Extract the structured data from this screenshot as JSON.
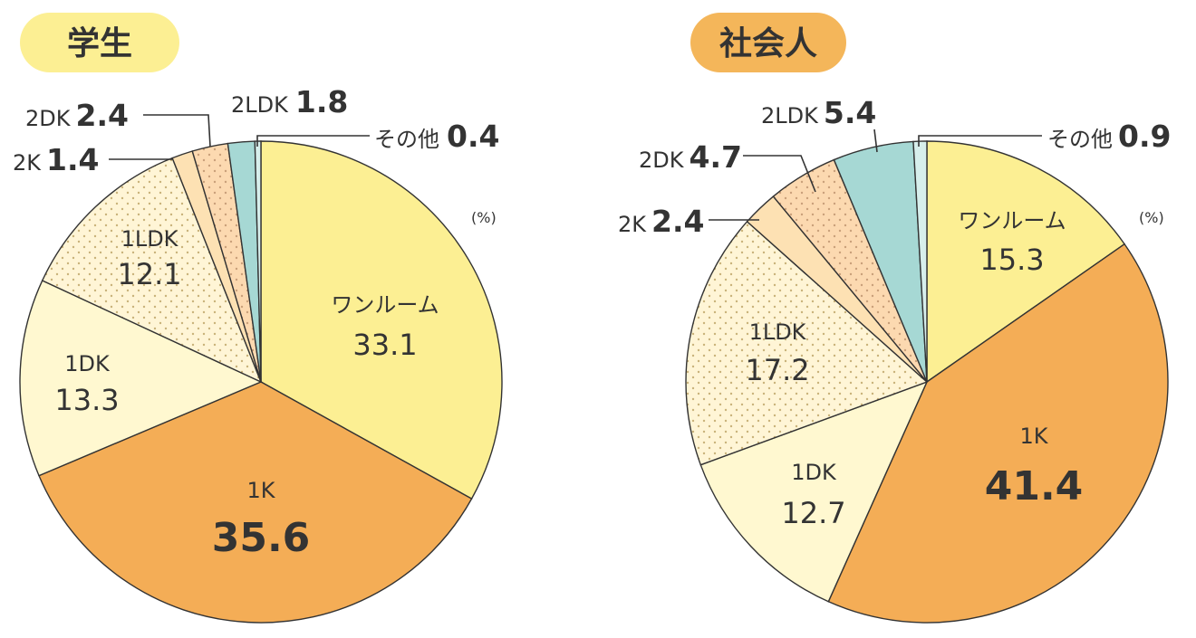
{
  "unit_label": "(%)",
  "colors": {
    "wanroom": "#fcef93",
    "1k": "#f4ad56",
    "1dk": "#fff8d0",
    "1ldk": "#fff5d6",
    "2k": "#fde1b3",
    "2dk": "#fcd9b0",
    "2ldk": "#a6d8d4",
    "other": "#d7efec",
    "dots": "#c9b27a",
    "pill_student": "#fcef93",
    "pill_worker": "#f4b65a"
  },
  "chart_data": [
    {
      "type": "pie",
      "title": "学生",
      "unit": "(%)",
      "categories": [
        "ワンルーム",
        "1K",
        "1DK",
        "1LDK",
        "2K",
        "2DK",
        "2LDK",
        "その他"
      ],
      "values": [
        33.1,
        35.6,
        13.3,
        12.1,
        1.4,
        2.4,
        1.8,
        0.4
      ],
      "value_labels": [
        "33.1",
        "35.6",
        "13.3",
        "12.1",
        "1.4",
        "2.4",
        "1.8",
        "0.4"
      ]
    },
    {
      "type": "pie",
      "title": "社会人",
      "unit": "(%)",
      "categories": [
        "ワンルーム",
        "1K",
        "1DK",
        "1LDK",
        "2K",
        "2DK",
        "2LDK",
        "その他"
      ],
      "values": [
        15.3,
        41.4,
        12.7,
        17.2,
        2.4,
        4.7,
        5.4,
        0.9
      ],
      "value_labels": [
        "15.3",
        "41.4",
        "12.7",
        "17.2",
        "2.4",
        "4.7",
        "5.4",
        "0.9"
      ]
    }
  ]
}
